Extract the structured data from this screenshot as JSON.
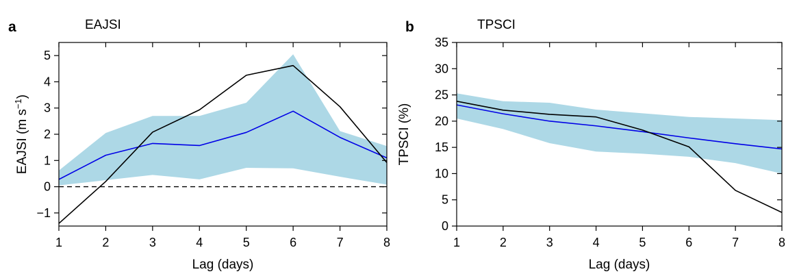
{
  "chart_data": [
    {
      "type": "line",
      "panel_label": "a",
      "title": "EAJSI",
      "xlabel": "Lag (days)",
      "ylabel": "EAJSI (m s",
      "ylabel_sup": "−1",
      "ylabel_close": ")",
      "xlim": [
        1,
        8
      ],
      "ylim": [
        -1.5,
        5.5
      ],
      "xticks": [
        1,
        2,
        3,
        4,
        5,
        6,
        7,
        8
      ],
      "yticks": [
        -1,
        0,
        1,
        2,
        3,
        4,
        5
      ],
      "ytick_labels": [
        "−1",
        "0",
        "1",
        "2",
        "3",
        "4",
        "5"
      ],
      "zero_line": 0,
      "x": [
        1,
        2,
        3,
        4,
        5,
        6,
        7,
        8
      ],
      "band": {
        "color": "#add8e6",
        "lower": [
          0.05,
          0.25,
          0.45,
          0.28,
          0.72,
          0.7,
          0.38,
          0.08
        ],
        "upper": [
          0.62,
          2.05,
          2.7,
          2.7,
          3.2,
          5.05,
          2.12,
          1.55
        ]
      },
      "series": [
        {
          "color": "#0000e6",
          "values": [
            0.28,
            1.2,
            1.65,
            1.57,
            2.07,
            2.88,
            1.88,
            1.1
          ]
        },
        {
          "color": "#000000",
          "values": [
            -1.4,
            0.2,
            2.08,
            2.93,
            4.25,
            4.62,
            3.05,
            0.92
          ]
        }
      ]
    },
    {
      "type": "line",
      "panel_label": "b",
      "title": "TPSCI",
      "xlabel": "Lag (days)",
      "ylabel": "TPSCI (%)",
      "xlim": [
        1,
        8
      ],
      "ylim": [
        0,
        35
      ],
      "xticks": [
        1,
        2,
        3,
        4,
        5,
        6,
        7,
        8
      ],
      "yticks": [
        0,
        5,
        10,
        15,
        20,
        25,
        30,
        35
      ],
      "ytick_labels": [
        "0",
        "5",
        "10",
        "15",
        "20",
        "25",
        "30",
        "35"
      ],
      "x": [
        1,
        2,
        3,
        4,
        5,
        6,
        7,
        8
      ],
      "band": {
        "color": "#add8e6",
        "lower": [
          20.5,
          18.5,
          15.8,
          14.2,
          13.8,
          13.2,
          12.0,
          10.0
        ],
        "upper": [
          25.3,
          23.8,
          23.5,
          22.2,
          21.5,
          20.8,
          20.5,
          20.2
        ]
      },
      "series": [
        {
          "color": "#0000e6",
          "values": [
            23.1,
            21.4,
            20.0,
            19.1,
            18.0,
            16.8,
            15.7,
            14.7
          ]
        },
        {
          "color": "#000000",
          "values": [
            23.8,
            22.1,
            21.3,
            20.8,
            18.3,
            15.1,
            6.8,
            2.6
          ]
        }
      ]
    }
  ]
}
